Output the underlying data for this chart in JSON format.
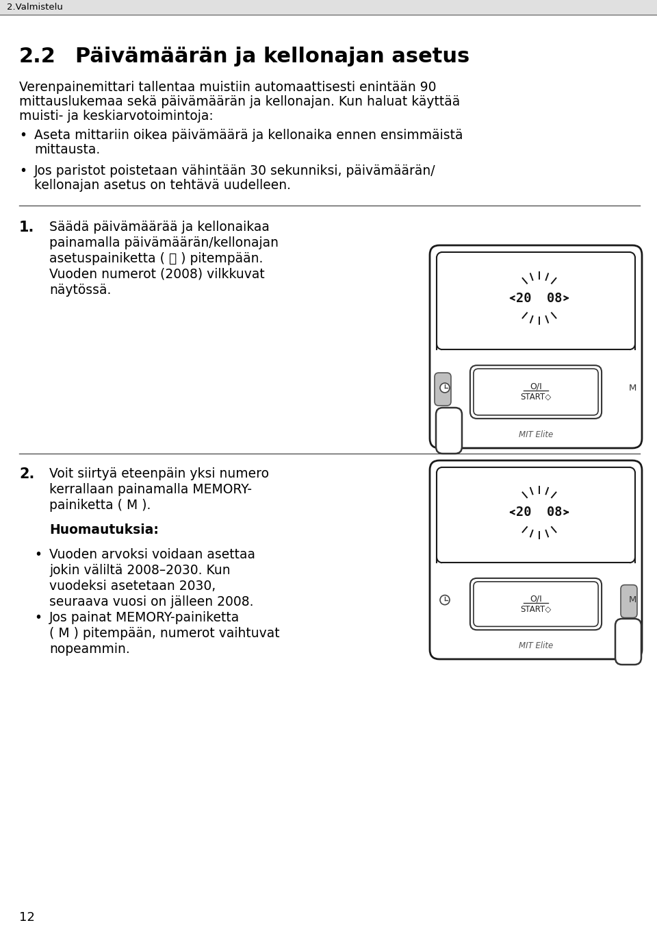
{
  "bg_color": "#ffffff",
  "header_text": "2.Valmistelu",
  "title_num": "2.2",
  "title_text": "Päivämäärän ja kellonajan asetus",
  "para1_line1": "Verenpainemittari tallentaa muistiin automaattisesti enintään 90",
  "para1_line2": "mittauslukemaa sekä päivämäärän ja kellonajan. Kun haluat käyttää",
  "para1_line3": "muisti- ja keskiarvotoimintoja:",
  "bullet1_l1": "Aseta mittariin oikea päivämäärä ja kellonaika ennen ensimmäistä",
  "bullet1_l2": "mittausta.",
  "bullet2_l1": "Jos paristot poistetaan vähintään 30 sekunniksi, päivämäärän/",
  "bullet2_l2": "kellonajan asetus on tehtävä uudelleen.",
  "step1_num": "1.",
  "step1_l1": "Säädä päivämäärää ja kellonaikaa",
  "step1_l2": "painamalla päivämäärän/kellonajan",
  "step1_l3": "asetuspainiketta ( ⌛ ) pitеmpään.",
  "step1_l4": "Vuoden numerot (2008) vilkkuvat",
  "step1_l5": "näytössä.",
  "step2_num": "2.",
  "step2_l1": "Voit siirtyä eteenpäin yksi numero",
  "step2_l2": "kerrallaan painamalla MEMORY-",
  "step2_l3": "painiketta ( M ).",
  "note_title": "Huomautuksia:",
  "note1_l1": "Vuoden arvoksi voidaan asettaa",
  "note1_l2": "jokin väliltä 2008–2030. Kun",
  "note1_l3": "vuodeksi asetetaan 2030,",
  "note1_l4": "seuraava vuosi on jälleen 2008.",
  "note2_l1": "Jos painat MEMORY-painiketta",
  "note2_l2": "( M ) pitеmpään, numerot vaihtuvat",
  "note2_l3": "nopeammin.",
  "page_num": "12"
}
